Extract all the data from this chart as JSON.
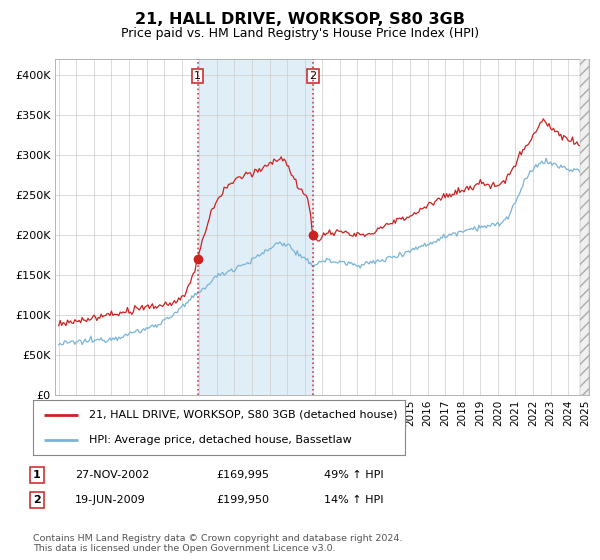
{
  "title": "21, HALL DRIVE, WORKSOP, S80 3GB",
  "subtitle": "Price paid vs. HM Land Registry's House Price Index (HPI)",
  "legend_line1": "21, HALL DRIVE, WORKSOP, S80 3GB (detached house)",
  "legend_line2": "HPI: Average price, detached house, Bassetlaw",
  "transaction1_date": "27-NOV-2002",
  "transaction1_price": "£169,995",
  "transaction1_info": "49% ↑ HPI",
  "transaction2_date": "19-JUN-2009",
  "transaction2_price": "£199,950",
  "transaction2_info": "14% ↑ HPI",
  "footer": "Contains HM Land Registry data © Crown copyright and database right 2024.\nThis data is licensed under the Open Government Licence v3.0.",
  "hpi_color": "#7ab4d8",
  "price_color": "#cc2222",
  "vline_color": "#cc2222",
  "span_color": "#e0eef8",
  "plot_bg": "#ffffff",
  "ylim": [
    0,
    420000
  ],
  "yticks": [
    0,
    50000,
    100000,
    150000,
    200000,
    250000,
    300000,
    350000,
    400000
  ],
  "transaction1_x": 2002.91,
  "transaction1_y": 169995,
  "transaction2_x": 2009.47,
  "transaction2_y": 199950,
  "xmin": 1995,
  "xmax": 2025
}
